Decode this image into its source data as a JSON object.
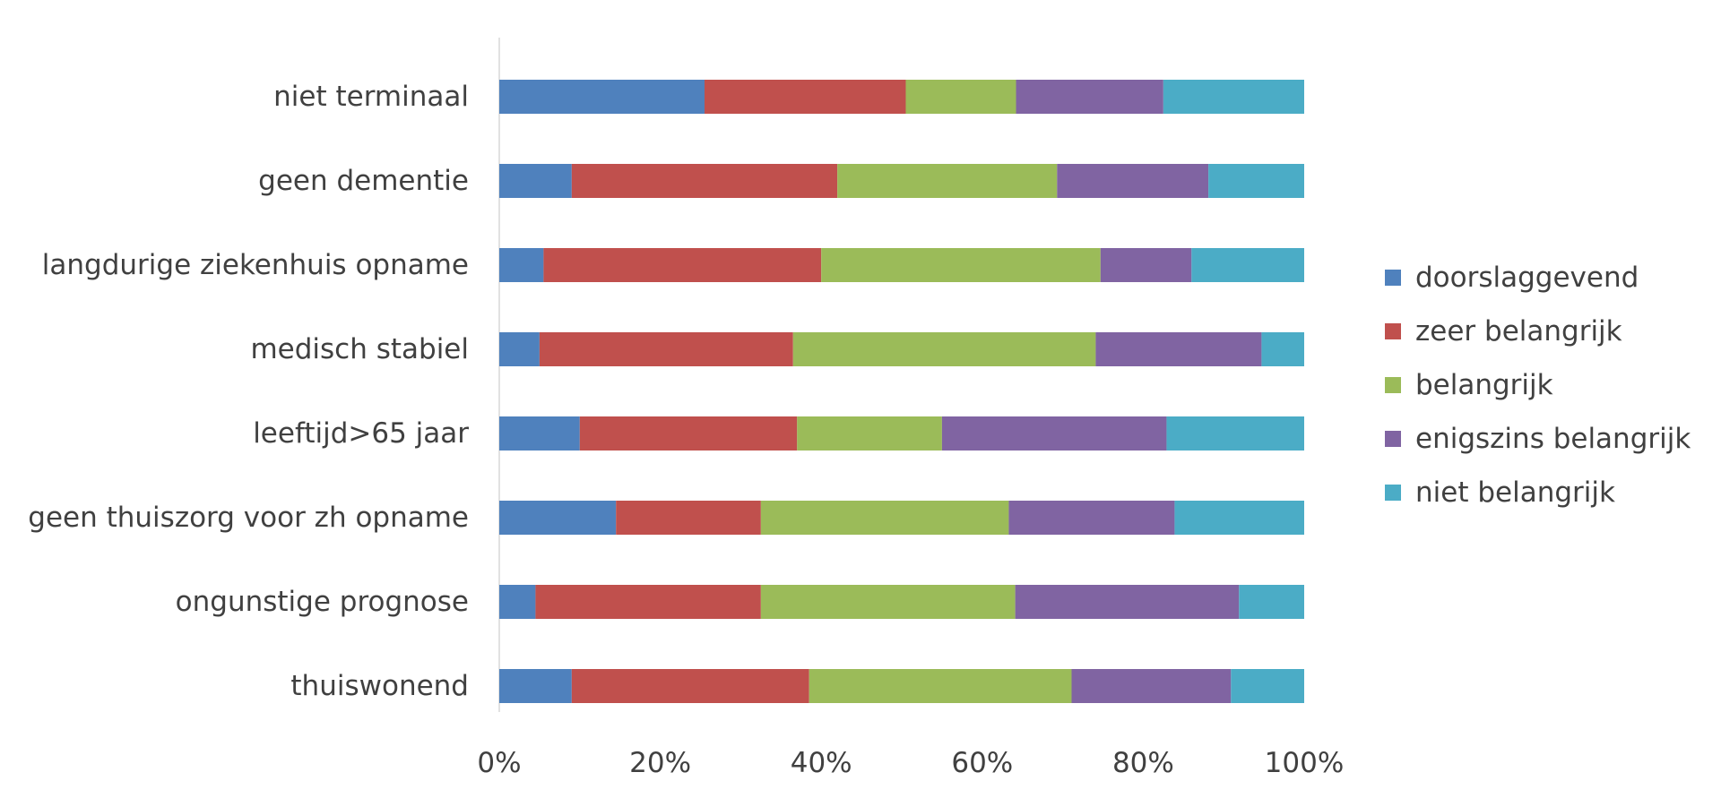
{
  "chart_data": {
    "type": "bar",
    "orientation": "horizontal",
    "stacked": "percent",
    "categories": [
      "niet terminaal",
      "geen dementie",
      "langdurige ziekenhuis opname",
      "medisch stabiel",
      "leeftijd>65 jaar",
      "geen thuiszorg voor zh opname",
      "ongunstige prognose",
      "thuiswonend"
    ],
    "series": [
      {
        "name": "doorslaggevend",
        "color": "#4f81bd",
        "values": [
          25.5,
          9.0,
          5.5,
          5.0,
          10.0,
          14.5,
          4.5,
          9.0
        ]
      },
      {
        "name": "zeer belangrijk",
        "color": "#c0504d",
        "values": [
          25.0,
          33.0,
          34.5,
          31.5,
          27.0,
          18.0,
          28.0,
          29.5
        ]
      },
      {
        "name": "belangrijk",
        "color": "#9bbb59",
        "values": [
          13.7,
          27.3,
          34.7,
          37.6,
          18.0,
          30.8,
          31.6,
          32.6
        ]
      },
      {
        "name": "enigszins belangrijk",
        "color": "#8064a2",
        "values": [
          18.3,
          18.8,
          11.3,
          20.6,
          27.9,
          20.6,
          27.8,
          19.8
        ]
      },
      {
        "name": "niet belangrijk",
        "color": "#4bacc6",
        "values": [
          17.5,
          11.9,
          14.0,
          5.3,
          17.1,
          16.1,
          8.1,
          9.1
        ]
      }
    ],
    "xaxis_ticks": [
      "0%",
      "20%",
      "40%",
      "60%",
      "80%",
      "100%"
    ],
    "xlim": [
      0,
      100
    ],
    "grid": false,
    "legend_position": "right",
    "title": "",
    "xlabel": "",
    "ylabel": ""
  }
}
